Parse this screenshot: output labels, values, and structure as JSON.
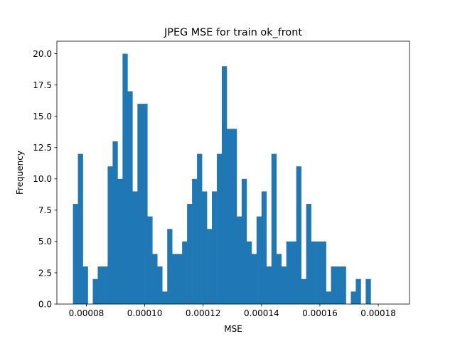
{
  "chart_data": {
    "type": "bar",
    "title": "JPEG MSE for train ok_front",
    "xlabel": "MSE",
    "ylabel": "Frequency",
    "bar_color": "#1f77b4",
    "bin_start": 7.54e-05,
    "bin_width": 1.7e-06,
    "xlim": [
      6.99e-05,
      0.0001907
    ],
    "ylim": [
      0,
      21
    ],
    "xticks": [
      {
        "value": 8e-05,
        "label": "0.00008"
      },
      {
        "value": 0.0001,
        "label": "0.00010"
      },
      {
        "value": 0.00012,
        "label": "0.00012"
      },
      {
        "value": 0.00014,
        "label": "0.00014"
      },
      {
        "value": 0.00016,
        "label": "0.00016"
      },
      {
        "value": 0.00018,
        "label": "0.00018"
      }
    ],
    "yticks": [
      {
        "value": 0,
        "label": "0.0"
      },
      {
        "value": 2.5,
        "label": "2.5"
      },
      {
        "value": 5,
        "label": "5.0"
      },
      {
        "value": 7.5,
        "label": "7.5"
      },
      {
        "value": 10,
        "label": "10.0"
      },
      {
        "value": 12.5,
        "label": "12.5"
      },
      {
        "value": 15,
        "label": "15.0"
      },
      {
        "value": 17.5,
        "label": "17.5"
      },
      {
        "value": 20,
        "label": "20.0"
      }
    ],
    "values": [
      8,
      12,
      3,
      0,
      2,
      3,
      3,
      11,
      13,
      10,
      20,
      17,
      9,
      16,
      16,
      7,
      4,
      3,
      1,
      6,
      4,
      4,
      5,
      8,
      10,
      12,
      9,
      6,
      9,
      12,
      19,
      14,
      14,
      7,
      10,
      5,
      4,
      7,
      9,
      3,
      12,
      4,
      3,
      5,
      5,
      11,
      2,
      8,
      5,
      5,
      5,
      1,
      3,
      3,
      3,
      0,
      1,
      2,
      0,
      2
    ]
  }
}
